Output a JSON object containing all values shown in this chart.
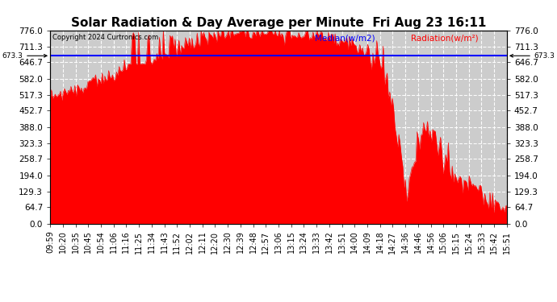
{
  "title": "Solar Radiation & Day Average per Minute  Fri Aug 23 16:11",
  "copyright": "Copyright 2024 Curtronics.com",
  "legend_median": "Median(w/m2)",
  "legend_radiation": "Radiation(w/m²)",
  "median_value": 673.3,
  "ylim": [
    0.0,
    776.0
  ],
  "yticks": [
    0.0,
    64.7,
    129.3,
    194.0,
    258.7,
    323.3,
    388.0,
    452.7,
    517.3,
    582.0,
    646.7,
    711.3,
    776.0
  ],
  "xtick_labels": [
    "09:59",
    "10:20",
    "10:35",
    "10:45",
    "10:54",
    "11:06",
    "11:16",
    "11:25",
    "11:34",
    "11:43",
    "11:52",
    "12:02",
    "12:11",
    "12:20",
    "12:30",
    "12:39",
    "12:48",
    "12:57",
    "13:06",
    "13:15",
    "13:24",
    "13:33",
    "13:42",
    "13:51",
    "14:00",
    "14:09",
    "14:18",
    "14:27",
    "14:36",
    "14:46",
    "14:56",
    "15:06",
    "15:15",
    "15:24",
    "15:33",
    "15:42",
    "15:51"
  ],
  "fill_color": "#ff0000",
  "line_color": "#ff0000",
  "median_line_color": "#0000ff",
  "background_color": "#ffffff",
  "grid_color": "#ffffff",
  "plot_bg_color": "#cccccc",
  "title_fontsize": 11,
  "tick_fontsize": 7.5,
  "left_annotation": "673.3",
  "right_annotation": "673.3"
}
